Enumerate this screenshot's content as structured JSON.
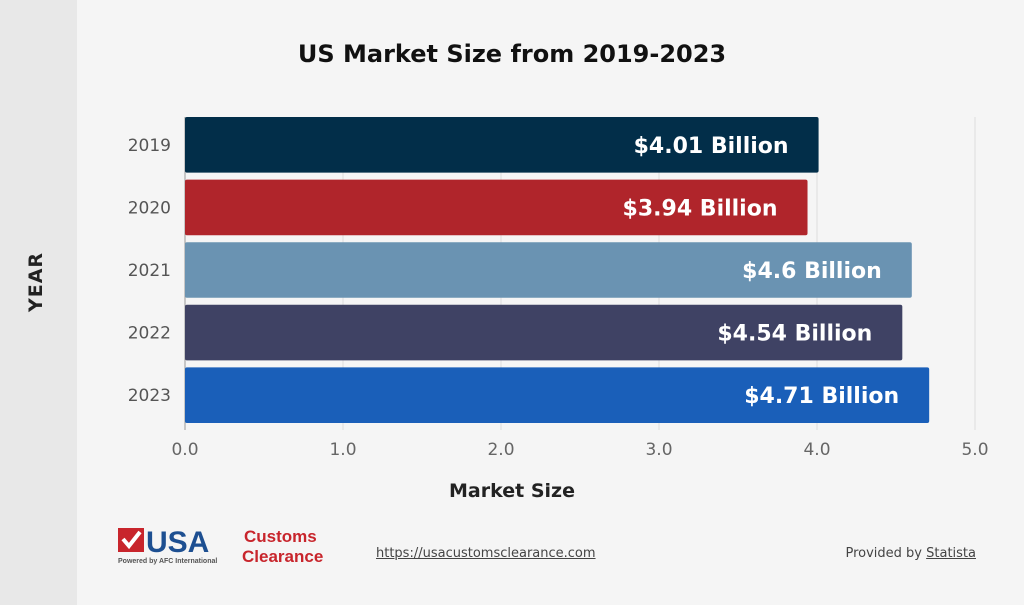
{
  "chart_data": {
    "type": "bar",
    "orientation": "horizontal",
    "title": "US Market Size from 2019-2023",
    "xlabel": "Market Size",
    "ylabel": "YEAR",
    "categories": [
      "2019",
      "2020",
      "2021",
      "2022",
      "2023"
    ],
    "values": [
      4.01,
      3.94,
      4.6,
      4.54,
      4.71
    ],
    "data_labels": [
      "$4.01 Billion",
      "$3.94 Billion",
      "$4.6 Billion",
      "$4.54 Billion",
      "$4.71 Billion"
    ],
    "colors": [
      "#022e49",
      "#b0252b",
      "#6a93b2",
      "#3f4264",
      "#1a5fb9"
    ],
    "xlim": [
      0,
      5
    ],
    "xticks": [
      "0.0",
      "1.0",
      "2.0",
      "3.0",
      "4.0",
      "5.0"
    ],
    "grid": true,
    "legend": "none"
  },
  "footer": {
    "logo_text": "USA Customs Clearance Powered by AFC International",
    "url": "https://usacustomsclearance.com",
    "provided_by": "Provided by",
    "source": "Statista"
  }
}
